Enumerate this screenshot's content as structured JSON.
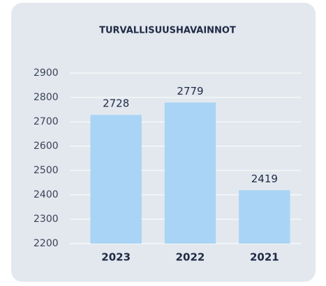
{
  "chart_data": {
    "type": "bar",
    "title": "TURVALLISUUSHAVAINNOT",
    "categories": [
      "2023",
      "2022",
      "2021"
    ],
    "values": [
      2728,
      2779,
      2419
    ],
    "color": "#a9d4f5",
    "ylim": [
      2200,
      2900
    ],
    "yticks": [
      2200,
      2300,
      2400,
      2500,
      2600,
      2700,
      2800,
      2900
    ],
    "grid": true
  }
}
